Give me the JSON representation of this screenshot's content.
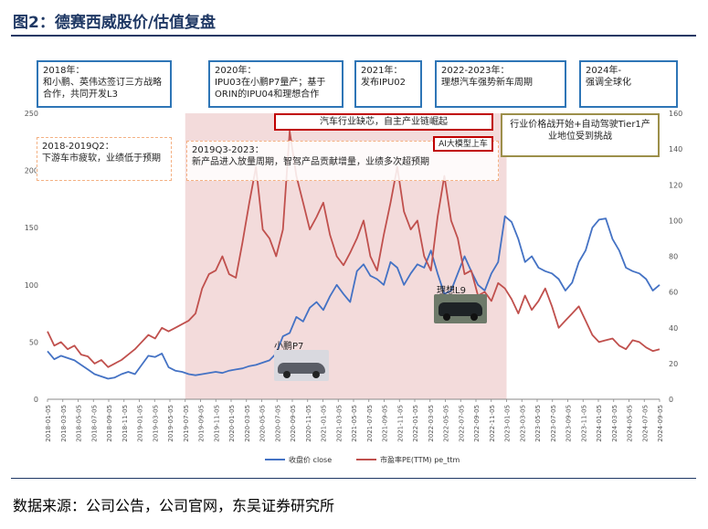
{
  "figure_title": "图2：德赛西威股价/估值复盘",
  "source": "数据来源：公司公告，公司官网，东吴证券研究所",
  "colors": {
    "price": "#4472c4",
    "pe": "#c0504d",
    "shade": "#f2d7d7",
    "title": "#1f3864"
  },
  "annotations": {
    "milestones": [
      {
        "year": "2018年：",
        "text": "和小鹏、英伟达签订三方战略合作，共同开发L3"
      },
      {
        "year": "2020年：",
        "text": "IPU03在小鹏P7量产；基于ORIN的IPU04和理想合作"
      },
      {
        "year": "2021年：",
        "text": "发布IPU02"
      },
      {
        "year": "2022-2023年：",
        "text": "理想汽车强势新车周期"
      },
      {
        "year": "2024年-",
        "text": "强调全球化"
      }
    ],
    "period_2018": {
      "title": "2018-2019Q2：",
      "text": "下游车市疲软，业绩低于预期"
    },
    "period_2019": {
      "title": "2019Q3-2023：",
      "text": "新产品进入放量周期，智驾产品贡献增量，业绩多次超预期"
    },
    "supply_chain": "汽车行业缺芯，自主产业链崛起",
    "ai_model": "AI大模型上车",
    "tier1": "行业价格战开始+自动驾驶Tier1产业地位受到挑战",
    "car_xpeng": "小鹏P7",
    "car_lixiang": "理想L9"
  },
  "chart_data": {
    "type": "line",
    "title": "德赛西威股价/估值复盘",
    "x_ticks": [
      "2018-01-05",
      "2018-03-05",
      "2018-05-05",
      "2018-07-05",
      "2018-09-05",
      "2018-11-05",
      "2019-01-05",
      "2019-03-05",
      "2019-05-05",
      "2019-07-05",
      "2019-09-05",
      "2019-11-05",
      "2020-01-05",
      "2020-03-05",
      "2020-05-05",
      "2020-07-05",
      "2020-09-05",
      "2020-11-05",
      "2021-01-05",
      "2021-03-05",
      "2021-05-05",
      "2021-07-05",
      "2021-09-05",
      "2021-11-05",
      "2022-01-05",
      "2022-03-05",
      "2022-05-05",
      "2022-07-05",
      "2022-09-05",
      "2022-11-05",
      "2023-01-05",
      "2023-03-05",
      "2023-05-05",
      "2023-07-05",
      "2023-09-05",
      "2023-11-05",
      "2024-01-05",
      "2024-03-05",
      "2024-05-05",
      "2024-07-05",
      "2024-09-05"
    ],
    "ylim_left": [
      0,
      250
    ],
    "yticks_left": [
      0,
      50,
      100,
      150,
      200,
      250
    ],
    "ylim_right": [
      0,
      160
    ],
    "yticks_right": [
      0,
      20,
      40,
      60,
      80,
      100,
      120,
      140,
      160
    ],
    "shaded_period": [
      "2019-07",
      "2023-01"
    ],
    "series": [
      {
        "name": "收盘价 close",
        "axis": "left",
        "values": [
          42,
          35,
          38,
          36,
          34,
          30,
          26,
          22,
          20,
          18,
          19,
          22,
          24,
          22,
          30,
          38,
          37,
          40,
          28,
          25,
          24,
          22,
          21,
          22,
          23,
          24,
          23,
          25,
          26,
          27,
          29,
          30,
          32,
          34,
          40,
          55,
          58,
          72,
          68,
          80,
          85,
          78,
          90,
          100,
          92,
          85,
          112,
          118,
          108,
          105,
          100,
          120,
          115,
          100,
          110,
          118,
          115,
          130,
          110,
          92,
          95,
          110,
          125,
          112,
          100,
          95,
          110,
          120,
          160,
          155,
          140,
          120,
          125,
          115,
          112,
          110,
          105,
          95,
          102,
          120,
          130,
          150,
          157,
          158,
          140,
          130,
          115,
          112,
          110,
          105,
          95,
          100
        ]
      },
      {
        "name": "市盈率PE(TTM) pe_ttm",
        "axis": "right",
        "values": [
          38,
          30,
          32,
          28,
          30,
          25,
          24,
          20,
          22,
          18,
          20,
          22,
          25,
          28,
          32,
          36,
          34,
          40,
          38,
          40,
          42,
          44,
          48,
          62,
          70,
          72,
          80,
          70,
          68,
          88,
          110,
          130,
          95,
          90,
          80,
          95,
          150,
          125,
          110,
          95,
          102,
          110,
          92,
          80,
          75,
          82,
          90,
          100,
          80,
          72,
          92,
          110,
          130,
          105,
          95,
          100,
          80,
          72,
          102,
          125,
          100,
          90,
          70,
          72,
          58,
          60,
          55,
          65,
          62,
          56,
          48,
          58,
          50,
          55,
          62,
          52,
          40,
          44,
          48,
          52,
          44,
          36,
          32,
          33,
          34,
          30,
          28,
          33,
          32,
          29,
          27,
          28
        ]
      }
    ],
    "ylabel_left": "",
    "ylabel_right": "",
    "xlabel": ""
  }
}
